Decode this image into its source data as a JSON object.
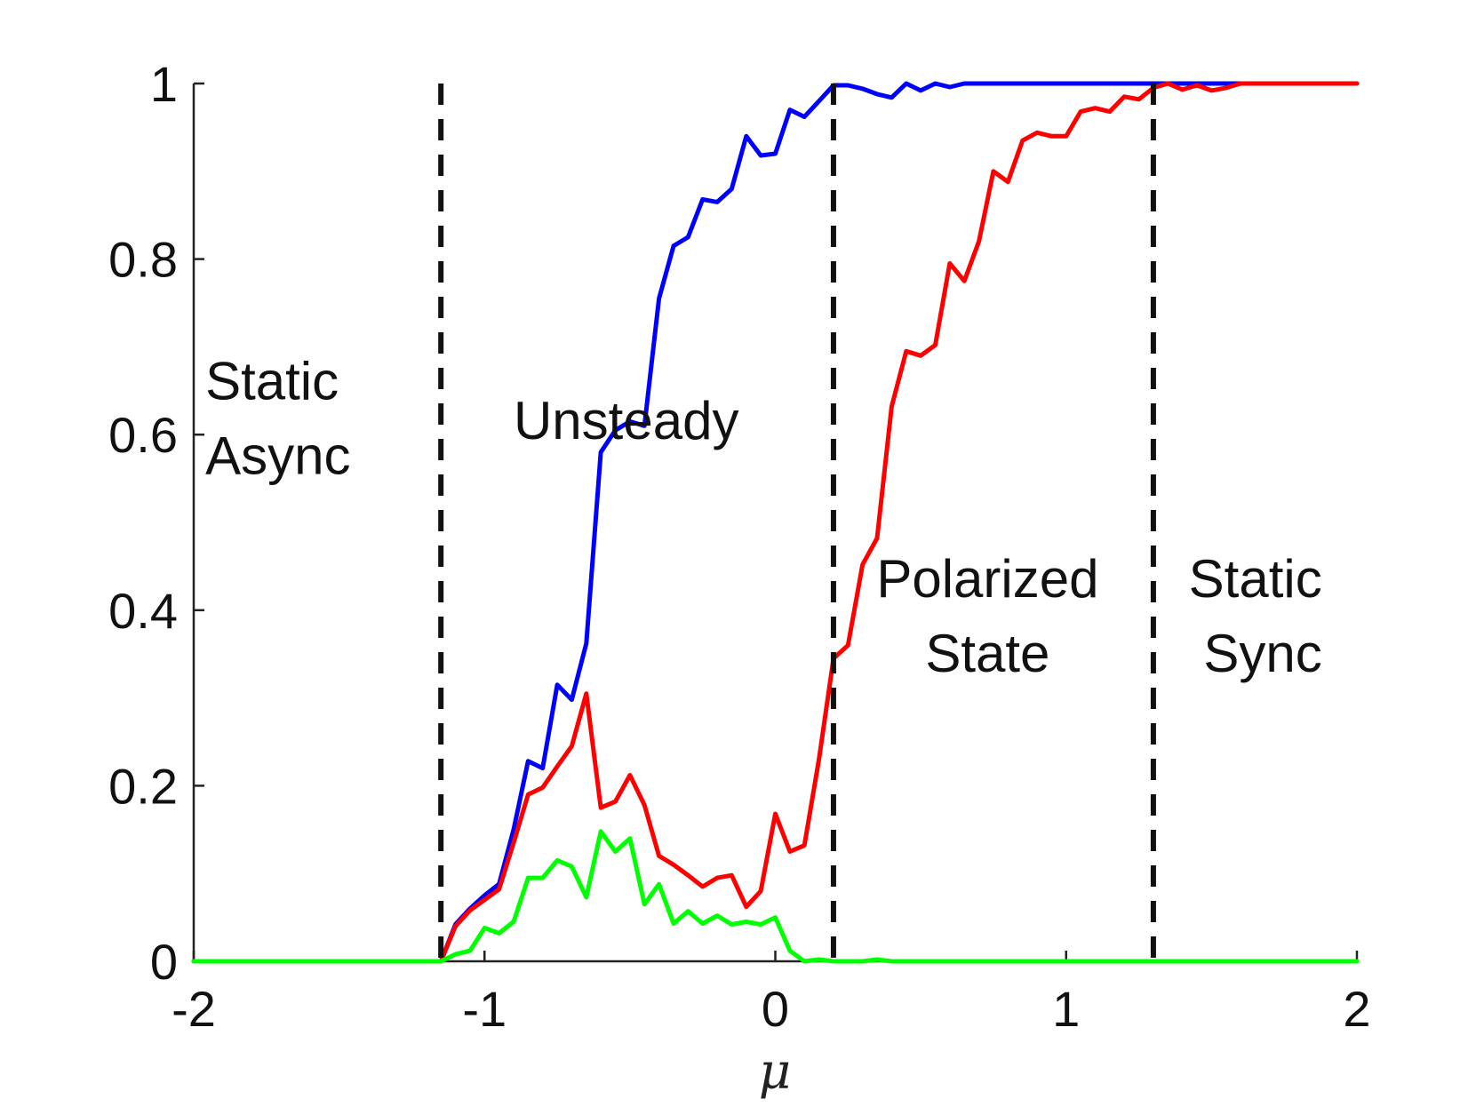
{
  "chart_data": {
    "type": "line",
    "xlabel": "μ",
    "ylabel": "",
    "xlim": [
      -2,
      2
    ],
    "ylim": [
      0,
      1
    ],
    "xticks": [
      -2,
      -1,
      0,
      1,
      2
    ],
    "xtick_labels": [
      "-2",
      "-1",
      "0",
      "1",
      "2"
    ],
    "yticks": [
      0,
      0.2,
      0.4,
      0.6,
      0.8,
      1
    ],
    "ytick_labels": [
      "0",
      "0.2",
      "0.4",
      "0.6",
      "0.8",
      "1"
    ],
    "grid": false,
    "boundaries": [
      -1.15,
      0.2,
      1.3
    ],
    "region_labels": [
      {
        "lines": [
          "Static",
          "Async"
        ],
        "x": -1.96,
        "y": [
          0.64,
          0.555
        ],
        "anchor": "start"
      },
      {
        "lines": [
          "Unsteady"
        ],
        "x": -0.9,
        "y": [
          0.595
        ],
        "anchor": "start"
      },
      {
        "lines": [
          "Polarized",
          "State"
        ],
        "x": 0.73,
        "y": [
          0.415,
          0.33
        ],
        "anchor": "middle"
      },
      {
        "lines": [
          "Static",
          "Sync"
        ],
        "x": 1.88,
        "y": [
          0.415,
          0.33
        ],
        "anchor": "end"
      }
    ],
    "series": [
      {
        "color": "#0000ff",
        "x": [
          -2,
          -1.15,
          -1.1,
          -1.05,
          -1.0,
          -0.95,
          -0.9,
          -0.85,
          -0.8,
          -0.75,
          -0.7,
          -0.65,
          -0.6,
          -0.55,
          -0.5,
          -0.45,
          -0.4,
          -0.35,
          -0.3,
          -0.25,
          -0.2,
          -0.15,
          -0.1,
          -0.05,
          0.0,
          0.05,
          0.1,
          0.15,
          0.2,
          0.25,
          0.3,
          0.35,
          0.4,
          0.45,
          0.5,
          0.55,
          0.6,
          0.65,
          0.7,
          2.0
        ],
        "y": [
          0,
          0,
          0.042,
          0.06,
          0.075,
          0.088,
          0.15,
          0.228,
          0.22,
          0.315,
          0.298,
          0.362,
          0.58,
          0.605,
          0.615,
          0.61,
          0.755,
          0.815,
          0.825,
          0.868,
          0.865,
          0.88,
          0.94,
          0.918,
          0.92,
          0.97,
          0.962,
          0.98,
          0.998,
          0.998,
          0.994,
          0.988,
          0.984,
          1.0,
          0.992,
          1.0,
          0.996,
          1.0,
          1.0,
          1.0
        ]
      },
      {
        "color": "#ff0000",
        "x": [
          -2,
          -1.15,
          -1.1,
          -1.05,
          -1.0,
          -0.95,
          -0.9,
          -0.85,
          -0.8,
          -0.75,
          -0.7,
          -0.65,
          -0.6,
          -0.55,
          -0.5,
          -0.45,
          -0.4,
          -0.35,
          -0.3,
          -0.25,
          -0.2,
          -0.15,
          -0.1,
          -0.05,
          0.0,
          0.05,
          0.1,
          0.15,
          0.2,
          0.25,
          0.3,
          0.35,
          0.4,
          0.45,
          0.5,
          0.55,
          0.6,
          0.65,
          0.7,
          0.75,
          0.8,
          0.85,
          0.9,
          0.95,
          1.0,
          1.05,
          1.1,
          1.15,
          1.2,
          1.25,
          1.3,
          1.35,
          1.4,
          1.45,
          1.5,
          1.55,
          1.6,
          1.65,
          2.0
        ],
        "y": [
          0,
          0,
          0.04,
          0.058,
          0.07,
          0.082,
          0.135,
          0.19,
          0.198,
          0.222,
          0.245,
          0.305,
          0.175,
          0.182,
          0.212,
          0.178,
          0.12,
          0.11,
          0.098,
          0.085,
          0.095,
          0.098,
          0.062,
          0.08,
          0.168,
          0.125,
          0.132,
          0.23,
          0.345,
          0.36,
          0.452,
          0.482,
          0.632,
          0.695,
          0.69,
          0.702,
          0.795,
          0.775,
          0.82,
          0.9,
          0.888,
          0.935,
          0.944,
          0.94,
          0.94,
          0.968,
          0.972,
          0.968,
          0.985,
          0.982,
          0.995,
          1.0,
          0.993,
          0.998,
          0.992,
          0.995,
          1.0,
          1.0,
          1.0
        ]
      },
      {
        "color": "#00ff00",
        "x": [
          -2,
          -1.15,
          -1.1,
          -1.05,
          -1.0,
          -0.95,
          -0.9,
          -0.85,
          -0.8,
          -0.75,
          -0.7,
          -0.65,
          -0.6,
          -0.55,
          -0.5,
          -0.45,
          -0.4,
          -0.35,
          -0.3,
          -0.25,
          -0.2,
          -0.15,
          -0.1,
          -0.05,
          0.0,
          0.05,
          0.1,
          0.15,
          0.2,
          0.25,
          0.3,
          0.35,
          0.4,
          2.0
        ],
        "y": [
          0,
          0,
          0.008,
          0.012,
          0.038,
          0.032,
          0.045,
          0.095,
          0.095,
          0.115,
          0.108,
          0.073,
          0.148,
          0.125,
          0.14,
          0.065,
          0.088,
          0.043,
          0.057,
          0.043,
          0.052,
          0.042,
          0.045,
          0.042,
          0.05,
          0.012,
          0.0,
          0.002,
          0.0,
          0.0,
          0.0,
          0.002,
          0.0,
          0.0
        ]
      }
    ]
  }
}
